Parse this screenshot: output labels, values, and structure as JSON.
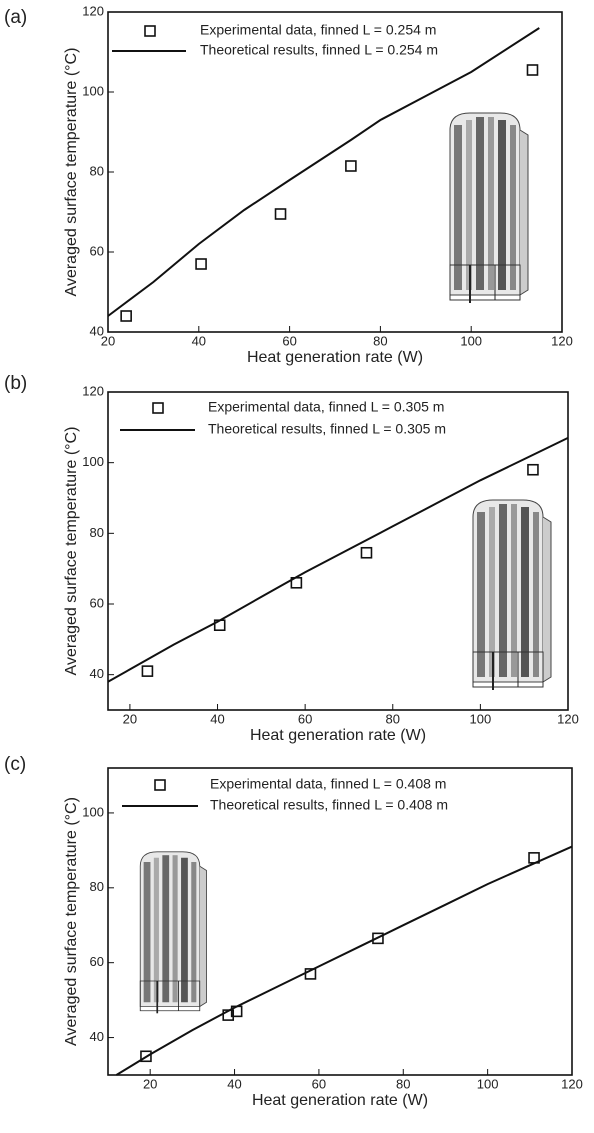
{
  "chart_data": [
    {
      "type": "line",
      "panel_label": "(a)",
      "xlabel": "Heat generation rate (W)",
      "ylabel": "Averaged surface temperature (°C)",
      "xlim": [
        20,
        120
      ],
      "xticks": [
        20,
        40,
        60,
        80,
        100,
        120
      ],
      "ylim": [
        40,
        120
      ],
      "yticks": [
        40,
        60,
        80,
        100,
        120
      ],
      "series": [
        {
          "name": "Experimental data, finned L = 0.254 m",
          "type": "scatter",
          "color": "#111111",
          "x": [
            24,
            40.5,
            58,
            73.5,
            113.5
          ],
          "values": [
            44,
            57,
            69.5,
            81.5,
            105.5
          ]
        },
        {
          "name": "Theoretical results, finned L = 0.254 m",
          "type": "line",
          "color": "#111111",
          "x": [
            20,
            30,
            40,
            50,
            60,
            73.5,
            80,
            90,
            100,
            115
          ],
          "values": [
            44,
            52.5,
            62,
            70.5,
            78,
            88,
            93,
            99,
            105,
            116
          ]
        }
      ]
    },
    {
      "type": "line",
      "panel_label": "(b)",
      "xlabel": "Heat generation rate (W)",
      "ylabel": "Averaged surface temperature (°C)",
      "xlim": [
        15,
        120
      ],
      "xticks": [
        20,
        40,
        60,
        80,
        100,
        120
      ],
      "ylim": [
        30,
        120
      ],
      "yticks": [
        40,
        60,
        80,
        100,
        120
      ],
      "series": [
        {
          "name": "Experimental data, finned L = 0.305 m",
          "type": "scatter",
          "color": "#111111",
          "x": [
            24,
            40.5,
            58,
            74,
            112
          ],
          "values": [
            41,
            54,
            66,
            74.5,
            98
          ]
        },
        {
          "name": "Theoretical results, finned L = 0.305 m",
          "type": "line",
          "color": "#111111",
          "x": [
            15,
            20,
            30,
            40,
            50,
            60,
            70,
            80,
            90,
            100,
            110,
            120
          ],
          "values": [
            38,
            41.5,
            48.5,
            55,
            62,
            69,
            75.5,
            82,
            88.5,
            95,
            101,
            107
          ]
        }
      ]
    },
    {
      "type": "line",
      "panel_label": "(c)",
      "xlabel": "Heat generation rate (W)",
      "ylabel": "Averaged surface temperature (°C)",
      "xlim": [
        10,
        120
      ],
      "xticks": [
        20,
        40,
        60,
        80,
        100,
        120
      ],
      "ylim": [
        30,
        112
      ],
      "yticks": [
        40,
        60,
        80,
        100
      ],
      "series": [
        {
          "name": "Experimental data, finned  L = 0.408 m",
          "type": "scatter",
          "color": "#111111",
          "x": [
            19,
            38.5,
            40.5,
            58,
            74,
            111
          ],
          "values": [
            35,
            46,
            47,
            57,
            66.5,
            88
          ]
        },
        {
          "name": "Theoretical results, finned  L = 0.408 m",
          "type": "line",
          "color": "#111111",
          "x": [
            12,
            20,
            30,
            40,
            50,
            60,
            70,
            80,
            90,
            100,
            110,
            120
          ],
          "values": [
            30,
            35.5,
            42,
            48,
            53.5,
            59,
            64.5,
            70,
            75.5,
            81,
            86,
            91
          ]
        }
      ]
    }
  ]
}
